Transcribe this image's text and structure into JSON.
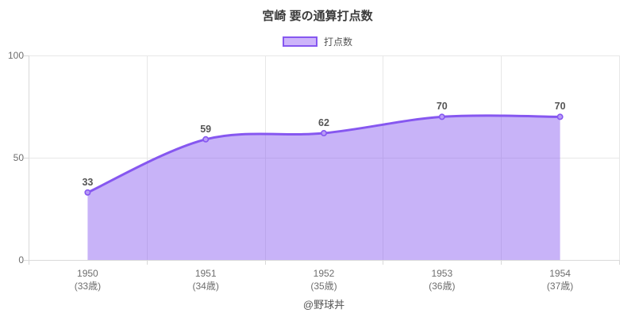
{
  "title": "宮崎 要の通算打点数",
  "legend": {
    "label": "打点数"
  },
  "footer": "@野球丼",
  "colors": {
    "line": "#8657f0",
    "fill": "rgba(134,87,240,0.45)",
    "fill_solid": "#cdb4fa",
    "point_fill": "#b89cf6",
    "grid": "#e7e7e7",
    "axis": "#d9d9d9"
  },
  "chart_data": {
    "type": "area",
    "title": "宮崎 要の通算打点数",
    "categories": [
      "1950",
      "1951",
      "1952",
      "1953",
      "1954"
    ],
    "category_sublabels": [
      "(33歳)",
      "(34歳)",
      "(35歳)",
      "(36歳)",
      "(37歳)"
    ],
    "series": [
      {
        "name": "打点数",
        "values": [
          33,
          59,
          62,
          70,
          70
        ]
      }
    ],
    "xlabel": "",
    "ylabel": "",
    "ylim": [
      0,
      100
    ],
    "yticks": [
      0,
      50,
      100
    ],
    "grid": true,
    "smooth": true,
    "legend_position": "top",
    "data_labels_shown": true
  }
}
